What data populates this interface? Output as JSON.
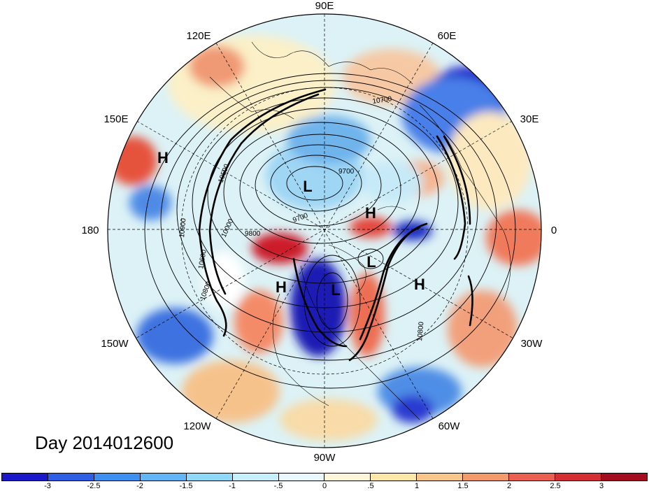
{
  "title": "Day 2014012600",
  "longitude_labels": {
    "90E": "90E",
    "60E": "60E",
    "30E": "30E",
    "0": "0",
    "30W": "30W",
    "60W": "60W",
    "90W": "90W",
    "120W": "120W",
    "150W": "150W",
    "180": "180",
    "150E": "150E",
    "120E": "120E"
  },
  "pressure_systems": {
    "h1": "H",
    "h2": "H",
    "h3": "H",
    "h4": "H",
    "l1": "L",
    "l2": "L",
    "l3": "L"
  },
  "contour_labels": {
    "c10700": "10700",
    "c9700a": "9700",
    "c9700b": "9700",
    "c9800": "9800",
    "c10500": "10500",
    "c10000": "10000",
    "c10900": "10900",
    "c10800a": "10800",
    "c10800b": "10800",
    "c10600": "10600"
  },
  "colorbar": {
    "colors": [
      "#1a18c8",
      "#2f5ee6",
      "#3d8ff0",
      "#62b6f5",
      "#8fd8fa",
      "#c6eefd",
      "#e8f8fe",
      "#fdf7d8",
      "#fce6a8",
      "#f8c58a",
      "#f39b6c",
      "#ea5f4f",
      "#d52f34",
      "#a30d1e"
    ],
    "ticks": [
      "-3",
      "-2.5",
      "-2",
      "-1.5",
      "-1",
      "-.5",
      "0",
      ".5",
      "1",
      "1.5",
      "2",
      "2.5",
      "3"
    ]
  }
}
